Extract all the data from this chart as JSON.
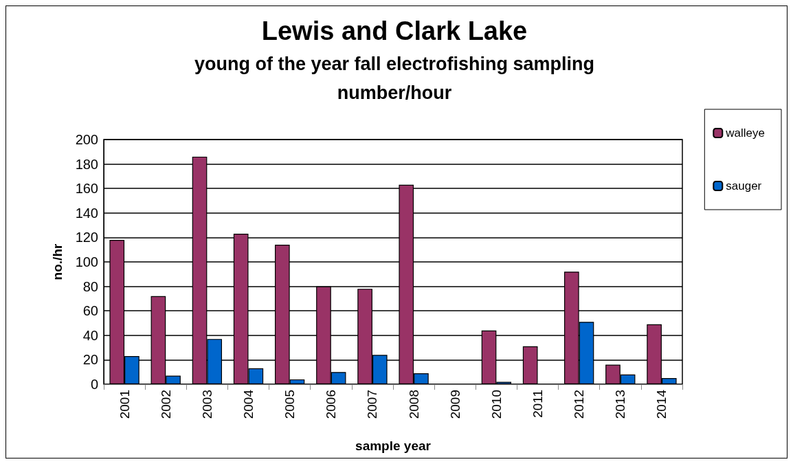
{
  "chart_data": {
    "type": "bar",
    "title": "Lewis and Clark Lake",
    "subtitle": "young of the year fall electrofishing sampling\nnumber/hour",
    "xlabel": "sample year",
    "ylabel": "no./hr",
    "categories": [
      "2001",
      "2002",
      "2003",
      "2004",
      "2005",
      "2006",
      "2007",
      "2008",
      "2009",
      "2010",
      "2011",
      "2012",
      "2013",
      "2014"
    ],
    "series": [
      {
        "name": "walleye",
        "color": "#993366",
        "values": [
          118,
          72,
          186,
          123,
          114,
          80,
          78,
          163,
          null,
          44,
          31,
          92,
          16,
          49
        ]
      },
      {
        "name": "sauger",
        "color": "#0066cc",
        "values": [
          23,
          7,
          37,
          13,
          4,
          10,
          24,
          9,
          null,
          2,
          0,
          51,
          8,
          5
        ]
      }
    ],
    "ylim": [
      0,
      200
    ],
    "yticks": [
      0,
      20,
      40,
      60,
      80,
      100,
      120,
      140,
      160,
      180,
      200
    ],
    "grid": "y",
    "legend": "right"
  }
}
